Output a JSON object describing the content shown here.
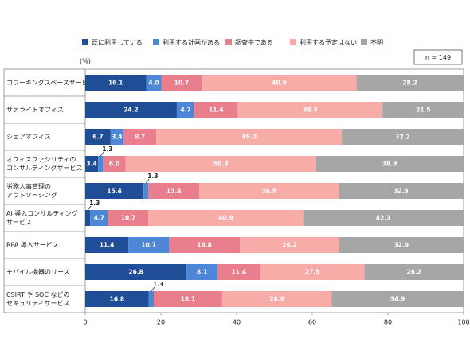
{
  "chart_data": {
    "type": "stacked-bar-horizontal",
    "unit": "(%)",
    "note": "n = 149",
    "categories": [
      [
        "コワーキングスペースサービス"
      ],
      [
        "サテライトオフィス"
      ],
      [
        "シェアオフィス"
      ],
      [
        "オフィスファシリティの",
        "コンサルティングサービス"
      ],
      [
        "労務人事管理の",
        "アウトソーシング"
      ],
      [
        "AI 導入コンサルティング",
        "サービス"
      ],
      [
        "RPA 導入サービス"
      ],
      [
        "モバイル機器のリース"
      ],
      [
        "CSIRT や SOC などの",
        "セキュリティサービス"
      ]
    ],
    "series": [
      {
        "name": "既に利用している",
        "color": "#1f4e96",
        "values": [
          16.1,
          24.2,
          6.7,
          3.4,
          15.4,
          1.3,
          11.4,
          26.8,
          16.8
        ],
        "value_labels": [
          "16.1",
          "24.2",
          "6.7",
          "3.4",
          "15.4",
          "1.3",
          "11.4",
          "26.8",
          "16.8"
        ]
      },
      {
        "name": "利用する計画がある",
        "color": "#4d87d6",
        "values": [
          4.0,
          4.7,
          3.4,
          1.3,
          1.3,
          4.7,
          10.7,
          8.1,
          1.3
        ],
        "value_labels": [
          "4.0",
          "4.7",
          "3.4",
          "1.3",
          "1.3",
          "4.7",
          "10.7",
          "8.1",
          "1.3"
        ]
      },
      {
        "name": "調査中である",
        "color": "#e97e8c",
        "values": [
          10.7,
          11.4,
          8.7,
          6.0,
          13.4,
          10.7,
          18.8,
          11.4,
          18.1
        ],
        "value_labels": [
          "10.7",
          "11.4",
          "8.7",
          "6.0",
          "13.4",
          "10.7",
          "18.8",
          "11.4",
          "18.1"
        ]
      },
      {
        "name": "利用する予定はない",
        "color": "#f7aca8",
        "values": [
          40.9,
          38.3,
          49.0,
          50.3,
          36.9,
          40.9,
          26.2,
          27.5,
          28.9
        ],
        "value_labels": [
          "40.9",
          "38.3",
          "49.0",
          "50.3",
          "36.9",
          "40.9",
          "26.2",
          "27.5",
          "28.9"
        ]
      },
      {
        "name": "不明",
        "color": "#a6a6a6",
        "values": [
          28.2,
          21.5,
          32.2,
          38.9,
          32.9,
          42.3,
          32.9,
          26.2,
          34.9
        ],
        "value_labels": [
          "28.2",
          "21.5",
          "32.2",
          "38.9",
          "32.9",
          "42.3",
          "32.9",
          "26.2",
          "34.9"
        ]
      }
    ],
    "xlim": [
      0,
      100
    ],
    "xticks": [
      0,
      20,
      40,
      60,
      80,
      100
    ]
  }
}
